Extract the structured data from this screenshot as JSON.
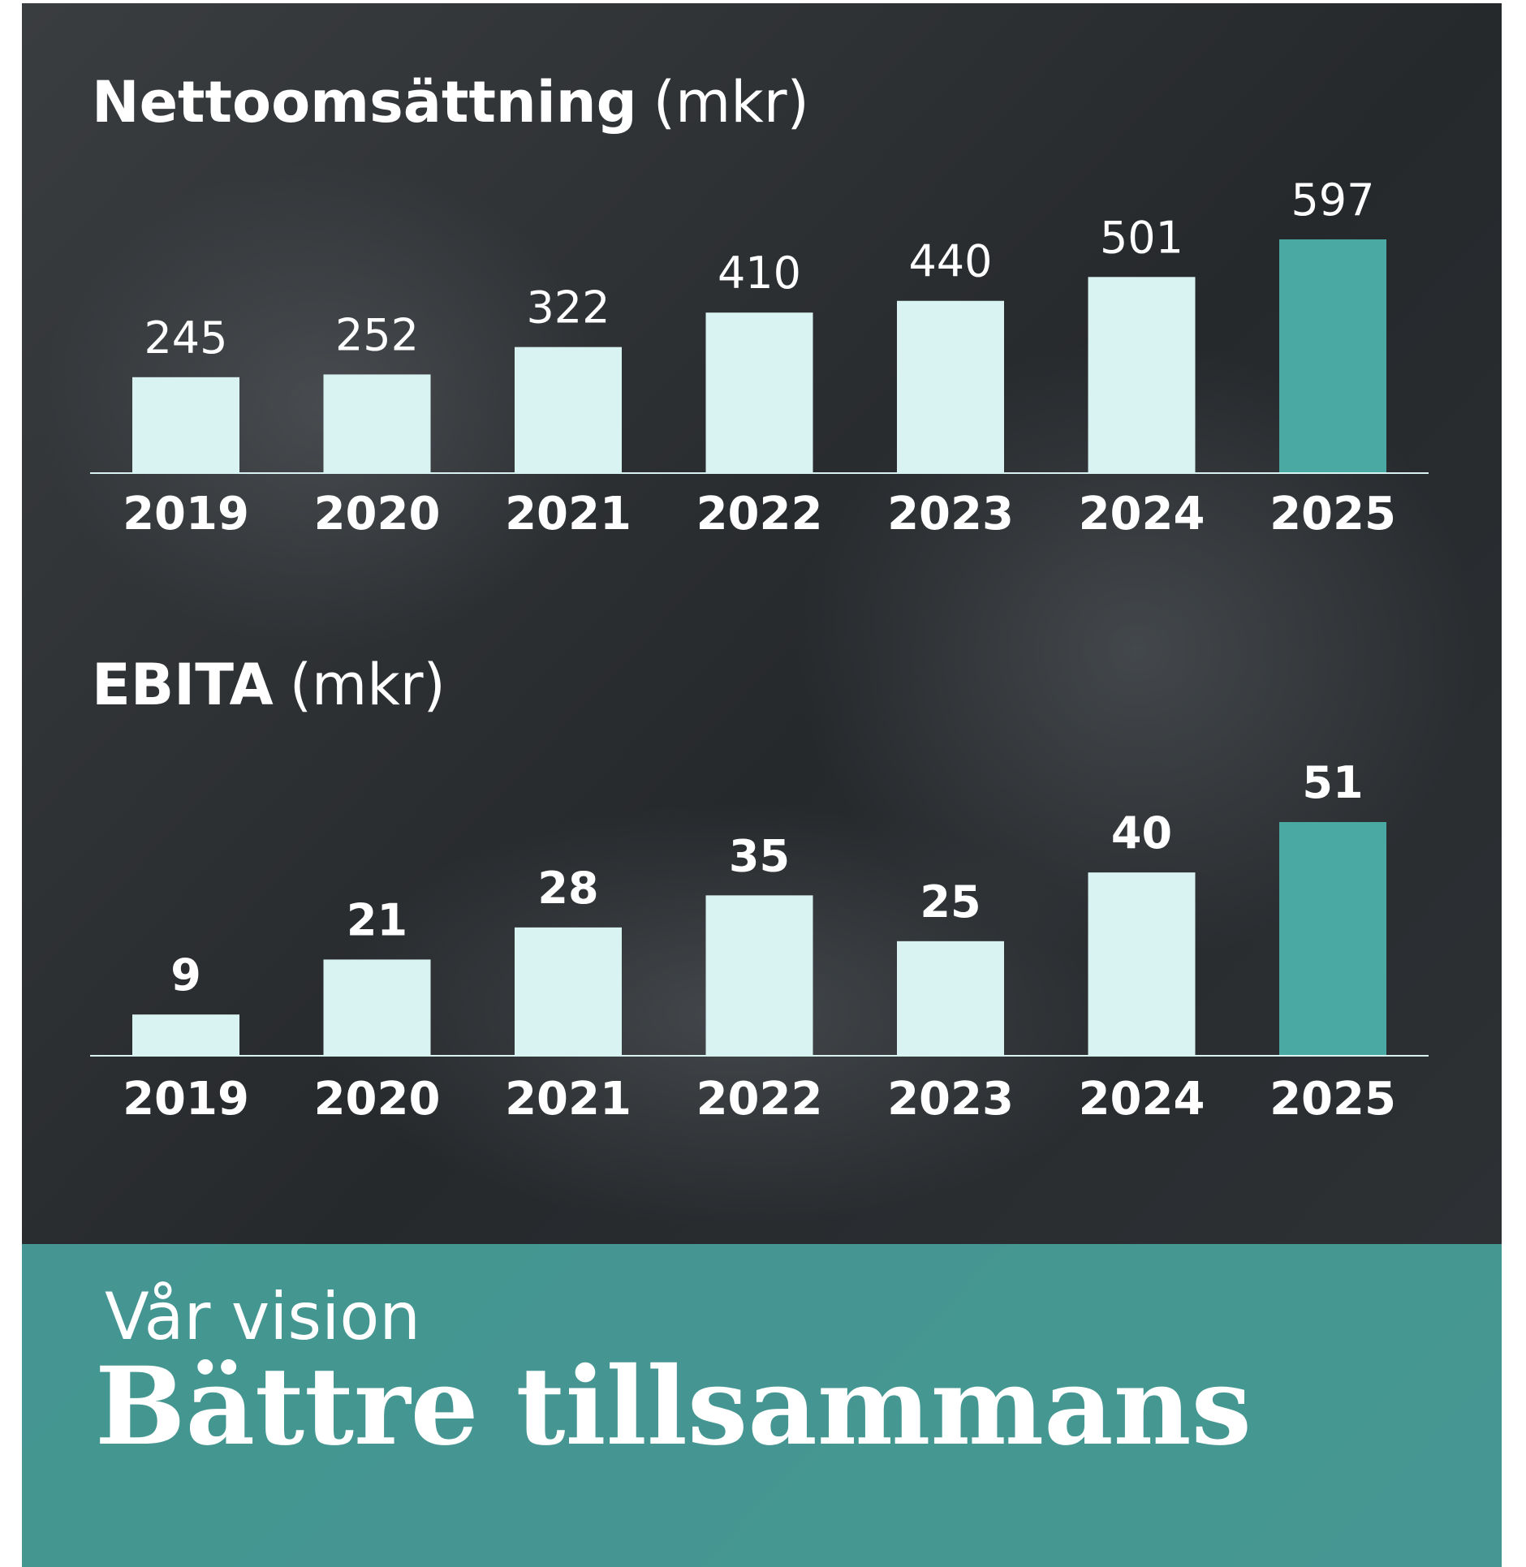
{
  "chart_data": [
    {
      "type": "bar",
      "title": "Nettoomsättning",
      "unit": "(mkr)",
      "categories": [
        "2019",
        "2020",
        "2021",
        "2022",
        "2023",
        "2024",
        "2025"
      ],
      "values": [
        245,
        252,
        322,
        410,
        440,
        501,
        597
      ],
      "colors": [
        "#d8f3f1",
        "#d8f3f1",
        "#d8f3f1",
        "#d8f3f1",
        "#d8f3f1",
        "#d8f3f1",
        "#4aa9a3"
      ]
    },
    {
      "type": "bar",
      "title": "EBITA",
      "unit": "(mkr)",
      "categories": [
        "2019",
        "2020",
        "2021",
        "2022",
        "2023",
        "2024",
        "2025"
      ],
      "values": [
        9,
        21,
        28,
        35,
        25,
        40,
        51
      ],
      "colors": [
        "#d8f3f1",
        "#d8f3f1",
        "#d8f3f1",
        "#d8f3f1",
        "#d8f3f1",
        "#d8f3f1",
        "#4aa9a3"
      ]
    }
  ],
  "vision": {
    "label": "Vår vision",
    "title": "Bättre tillsammans"
  }
}
